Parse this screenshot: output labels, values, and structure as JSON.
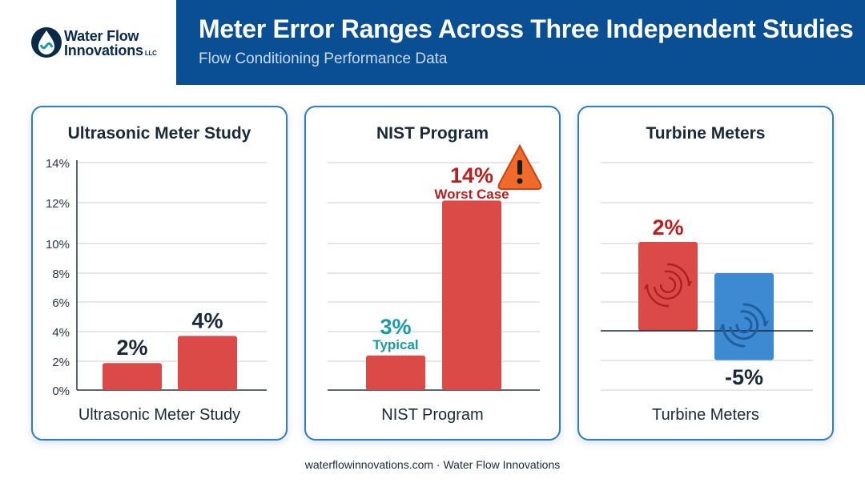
{
  "header": {
    "title": "Meter Error Ranges Across Three Independent Studies",
    "subtitle": "Flow Conditioning Performance Data"
  },
  "logo": {
    "line1": "Water Flow",
    "line2": "Innovations",
    "suffix": "LLC"
  },
  "footer": "waterflowinnovations.com · Water Flow Innovations",
  "colors": {
    "banner": "#0a4e93",
    "bar_red": "#dc4a48",
    "bar_blue": "#3d8ad2",
    "teal": "#1a9aa8",
    "dark_red": "#b5201f",
    "panel_border": "#2f7bc6"
  },
  "chart_data": [
    {
      "type": "bar",
      "title": "Ultrasonic Meter Study",
      "xlabel": "Ultrasonic Meter Study",
      "y_ticks": [
        "14%",
        "12%",
        "10%",
        "8%",
        "6%",
        "4%",
        "2%",
        "0%"
      ],
      "ylim": [
        0,
        14
      ],
      "categories": [
        "",
        ""
      ],
      "values": [
        2,
        4
      ],
      "data_labels": [
        "2%",
        "4%"
      ],
      "grid": true
    },
    {
      "type": "bar",
      "title": "NIST Program",
      "xlabel": "NIST Program",
      "ylim": [
        0,
        14
      ],
      "categories": [
        "Typical",
        "Worst Case"
      ],
      "values": [
        3,
        14
      ],
      "data_labels": [
        "3%",
        "14%"
      ],
      "annotations": [
        "Typical",
        "Worst Case"
      ],
      "icons": [
        "warning-icon"
      ],
      "grid": true
    },
    {
      "type": "bar",
      "title": "Turbine Meters",
      "xlabel": "Turbine Meters",
      "categories": [
        "",
        ""
      ],
      "values": [
        2,
        -5
      ],
      "data_labels": [
        "2%",
        "-5%"
      ],
      "icons": [
        "swirl-icon",
        "swirl-icon"
      ],
      "grid": true
    }
  ]
}
